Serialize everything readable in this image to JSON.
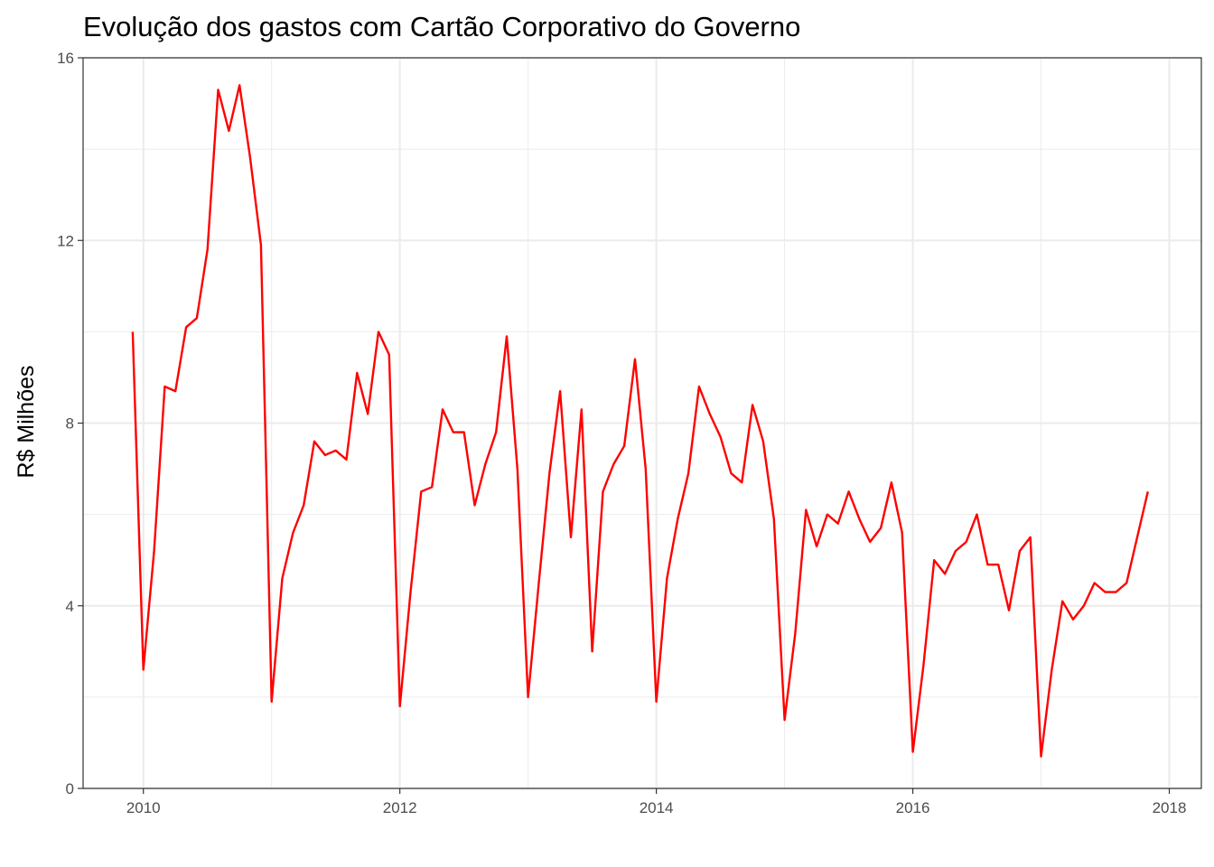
{
  "chart_data": {
    "type": "line",
    "title": "Evolução dos gastos com Cartão Corporativo do Governo",
    "xlabel": "",
    "ylabel": "R$ Milhões",
    "xlim": [
      2009.53,
      2018.25
    ],
    "ylim": [
      0,
      16
    ],
    "x_ticks": [
      2010,
      2012,
      2014,
      2016,
      2018
    ],
    "x_tick_labels": [
      "2010",
      "2012",
      "2014",
      "2016",
      "2018"
    ],
    "y_ticks": [
      0,
      4,
      8,
      12,
      16
    ],
    "y_tick_labels": [
      "0",
      "4",
      "8",
      "12",
      "16"
    ],
    "grid": true,
    "line_color": "#ff0000",
    "series": [
      {
        "x": [
          "2009-12",
          "2010-01",
          "2010-02",
          "2010-03",
          "2010-04",
          "2010-05",
          "2010-06",
          "2010-07",
          "2010-08",
          "2010-09",
          "2010-10",
          "2010-11",
          "2010-12",
          "2011-01",
          "2011-02",
          "2011-03",
          "2011-04",
          "2011-05",
          "2011-06",
          "2011-07",
          "2011-08",
          "2011-09",
          "2011-10",
          "2011-11",
          "2011-12",
          "2012-01",
          "2012-02",
          "2012-03",
          "2012-04",
          "2012-05",
          "2012-06",
          "2012-07",
          "2012-08",
          "2012-09",
          "2012-10",
          "2012-11",
          "2012-12",
          "2013-01",
          "2013-02",
          "2013-03",
          "2013-04",
          "2013-05",
          "2013-06",
          "2013-07",
          "2013-08",
          "2013-09",
          "2013-10",
          "2013-11",
          "2013-12",
          "2014-01",
          "2014-02",
          "2014-03",
          "2014-04",
          "2014-05",
          "2014-06",
          "2014-07",
          "2014-08",
          "2014-09",
          "2014-10",
          "2014-11",
          "2014-12",
          "2015-01",
          "2015-02",
          "2015-03",
          "2015-04",
          "2015-05",
          "2015-06",
          "2015-07",
          "2015-08",
          "2015-09",
          "2015-10",
          "2015-11",
          "2015-12",
          "2016-01",
          "2016-02",
          "2016-03",
          "2016-04",
          "2016-05",
          "2016-06",
          "2016-07",
          "2016-08",
          "2016-09",
          "2016-10",
          "2016-11",
          "2016-12",
          "2017-01",
          "2017-02",
          "2017-03",
          "2017-04",
          "2017-05",
          "2017-06",
          "2017-07",
          "2017-08",
          "2017-09",
          "2017-10",
          "2017-11"
        ],
        "values": [
          10.0,
          2.6,
          5.2,
          8.8,
          8.7,
          10.1,
          10.3,
          11.8,
          15.3,
          14.4,
          15.4,
          13.8,
          11.9,
          1.9,
          4.6,
          5.6,
          6.2,
          7.6,
          7.3,
          7.4,
          7.2,
          9.1,
          8.2,
          10.0,
          9.5,
          1.8,
          4.3,
          6.5,
          6.6,
          8.3,
          7.8,
          7.8,
          6.2,
          7.1,
          7.8,
          9.9,
          7.0,
          2.0,
          4.5,
          6.9,
          8.7,
          5.5,
          8.3,
          3.0,
          6.5,
          7.1,
          7.5,
          9.4,
          7.0,
          1.9,
          4.6,
          5.9,
          6.9,
          8.8,
          8.2,
          7.7,
          6.9,
          6.7,
          8.4,
          7.6,
          5.9,
          1.5,
          3.4,
          6.1,
          5.3,
          6.0,
          5.8,
          6.5,
          5.9,
          5.4,
          5.7,
          6.7,
          5.6,
          0.8,
          2.7,
          5.0,
          4.7,
          5.2,
          5.4,
          6.0,
          4.9,
          4.9,
          3.9,
          5.2,
          5.5,
          0.7,
          2.6,
          4.1,
          3.7,
          4.0,
          4.5,
          4.3,
          4.3,
          4.5,
          5.5,
          6.5
        ]
      }
    ]
  }
}
